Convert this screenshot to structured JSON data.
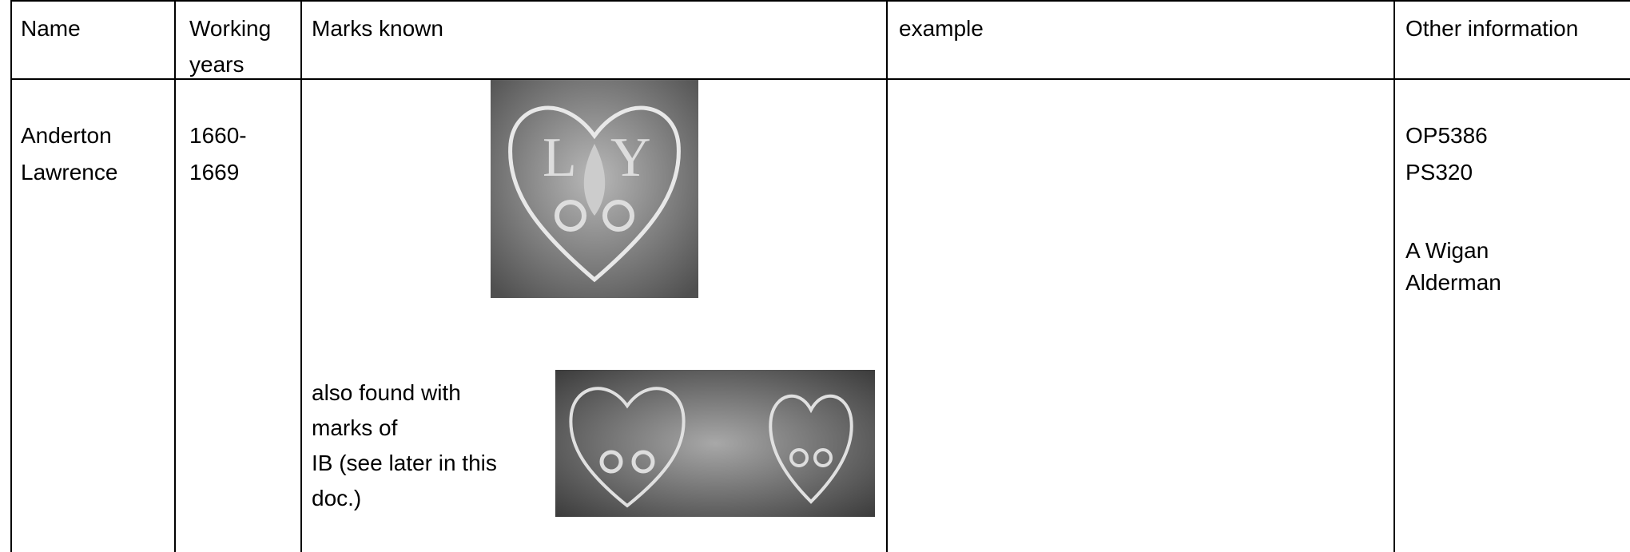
{
  "table": {
    "header": [
      [
        "Name"
      ],
      [
        "Working",
        "years"
      ],
      [
        "Marks known"
      ],
      [
        "example"
      ],
      [
        "Other information"
      ]
    ],
    "rows": [
      {
        "name": [
          "Anderton",
          "Lawrence"
        ],
        "years": [
          "1660-",
          "1669"
        ],
        "marks_note": [
          "also found with",
          "marks of",
          "IB (see later in this",
          "doc.)"
        ],
        "other": [
          "OP5386",
          "PS320",
          "A Wigan",
          "Alderman"
        ]
      }
    ]
  }
}
